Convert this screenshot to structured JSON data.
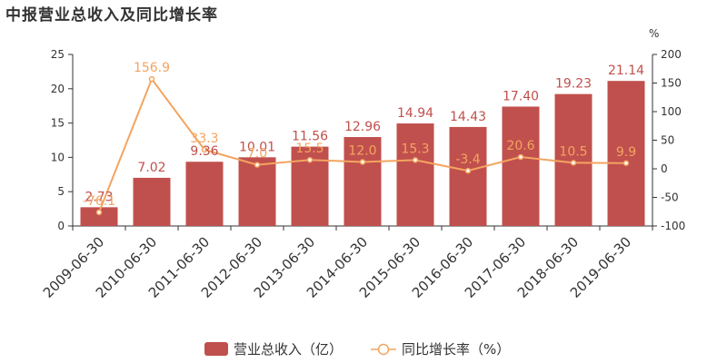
{
  "chart_data": {
    "type": "bar",
    "title": "中报营业总收入及同比增长率",
    "categories": [
      "2009-06-30",
      "2010-06-30",
      "2011-06-30",
      "2012-06-30",
      "2013-06-30",
      "2014-06-30",
      "2015-06-30",
      "2016-06-30",
      "2017-06-30",
      "2018-06-30",
      "2019-06-30"
    ],
    "series": [
      {
        "name": "营业总收入（亿）",
        "type": "bar",
        "axis": "left",
        "color": "#c0504d",
        "values": [
          2.73,
          7.02,
          9.36,
          10.01,
          11.56,
          12.96,
          14.94,
          14.43,
          17.4,
          19.23,
          21.14
        ],
        "labels": [
          "2.73",
          "7.02",
          "9.36",
          "10.01",
          "11.56",
          "12.96",
          "14.94",
          "14.43",
          "17.40",
          "19.23",
          "21.14"
        ]
      },
      {
        "name": "同比增长率（%）",
        "type": "line",
        "axis": "right",
        "color": "#f4a460",
        "values": [
          -76.1,
          156.9,
          33.3,
          7.0,
          15.5,
          12.0,
          15.3,
          -3.4,
          20.6,
          10.5,
          9.9
        ],
        "labels": [
          "-76.1",
          "156.9",
          "33.3",
          "7.0",
          "15.5",
          "12.0",
          "15.3",
          "-3.4",
          "20.6",
          "10.5",
          "9.9"
        ]
      }
    ],
    "y_left": {
      "min": 0,
      "max": 25,
      "ticks": [
        0,
        5,
        10,
        15,
        20,
        25
      ]
    },
    "y_right": {
      "min": -100,
      "max": 200,
      "ticks": [
        -100,
        -50,
        0,
        50,
        100,
        150,
        200
      ],
      "unit": "%"
    },
    "legend": "bottom",
    "grid": false
  }
}
